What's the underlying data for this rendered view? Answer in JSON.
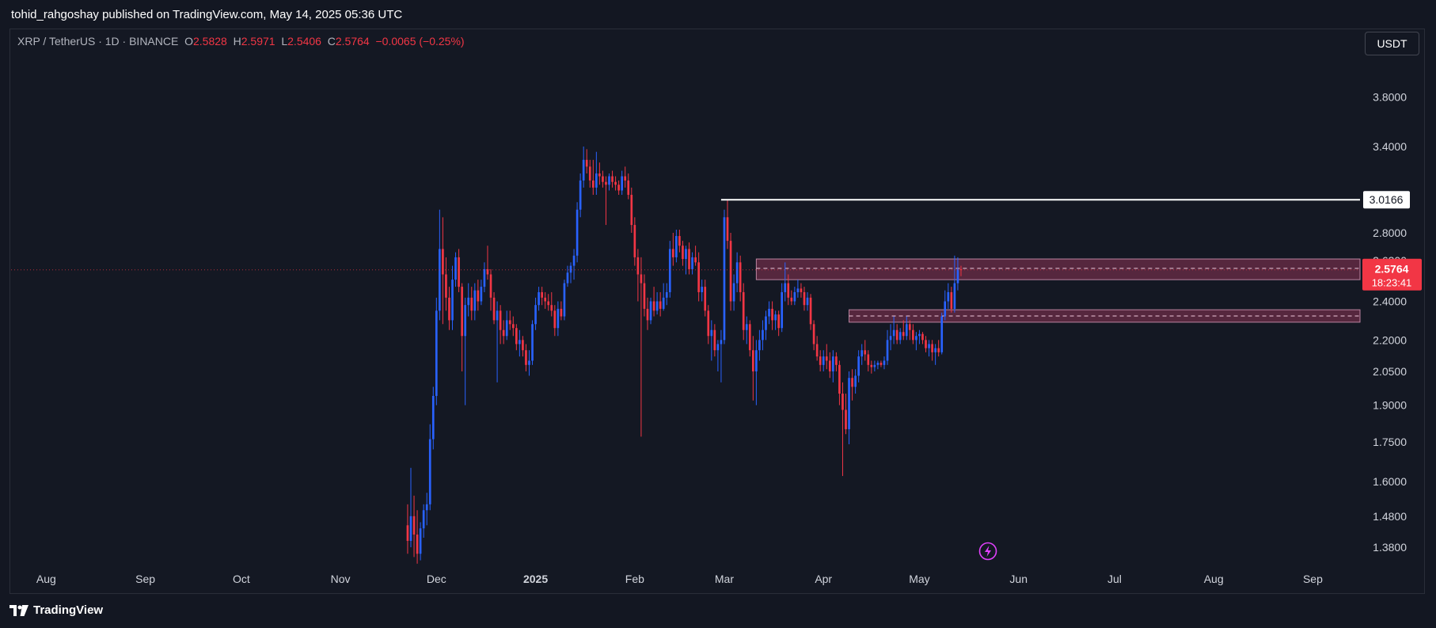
{
  "header": {
    "published": "tohid_rahgoshay published on TradingView.com, May 14, 2025 05:36 UTC"
  },
  "legend": {
    "symbol": "XRP / TetherUS · 1D · BINANCE",
    "o_label": "O",
    "o_value": "2.5828",
    "h_label": "H",
    "h_value": "2.5971",
    "l_label": "L",
    "l_value": "2.5406",
    "c_label": "C",
    "c_value": "2.5764",
    "change": "−0.0065 (−0.25%)"
  },
  "unit_button": "USDT",
  "footer": {
    "brand": "TradingView"
  },
  "colors": {
    "up": "#2962ff",
    "down": "#f23645",
    "zone": "#5a2840",
    "bg": "#141823"
  },
  "chart_data": {
    "type": "candlestick",
    "scale": "log",
    "y_ticks": [
      "3.8000",
      "3.4000",
      "2.8000",
      "2.4000",
      "2.2000",
      "2.0500",
      "1.9000",
      "1.7500",
      "1.6000",
      "1.4800",
      "1.3800"
    ],
    "x_ticks": [
      "Aug",
      "Sep",
      "Oct",
      "Nov",
      "Dec",
      "2025",
      "Feb",
      "Mar",
      "Apr",
      "May",
      "Jun",
      "Jul",
      "Aug",
      "Sep"
    ],
    "x_range": [
      "2024-07-23",
      "2025-09-15"
    ],
    "ylim": [
      1.32,
      4.1
    ],
    "resistance_line": {
      "label": "3.0166",
      "value": 3.0166,
      "from": "2025-02-28"
    },
    "last_price": {
      "value": "2.5764",
      "countdown": "18:23:41",
      "hidden_label": "2.6300"
    },
    "zones": [
      {
        "from": "2025-03-11",
        "low": 2.52,
        "high": 2.64,
        "mid": 2.585
      },
      {
        "from": "2025-04-09",
        "low": 2.29,
        "high": 2.355,
        "mid": 2.322
      }
    ],
    "candles": [
      [
        "2024-11-22",
        1.45,
        1.52,
        1.36,
        1.4
      ],
      [
        "2024-11-23",
        1.4,
        1.65,
        1.38,
        1.48
      ],
      [
        "2024-11-24",
        1.48,
        1.55,
        1.35,
        1.42
      ],
      [
        "2024-11-25",
        1.42,
        1.5,
        1.33,
        1.36
      ],
      [
        "2024-11-26",
        1.36,
        1.46,
        1.34,
        1.44
      ],
      [
        "2024-11-27",
        1.44,
        1.52,
        1.41,
        1.5
      ],
      [
        "2024-11-28",
        1.5,
        1.56,
        1.45,
        1.52
      ],
      [
        "2024-11-29",
        1.52,
        1.82,
        1.5,
        1.76
      ],
      [
        "2024-11-30",
        1.76,
        1.98,
        1.72,
        1.94
      ],
      [
        "2024-12-01",
        1.94,
        2.42,
        1.9,
        2.35
      ],
      [
        "2024-12-02",
        2.35,
        2.95,
        2.3,
        2.7
      ],
      [
        "2024-12-03",
        2.7,
        2.9,
        2.28,
        2.55
      ],
      [
        "2024-12-04",
        2.55,
        2.65,
        2.35,
        2.42
      ],
      [
        "2024-12-05",
        2.42,
        2.48,
        2.25,
        2.3
      ],
      [
        "2024-12-06",
        2.3,
        2.6,
        2.25,
        2.52
      ],
      [
        "2024-12-07",
        2.52,
        2.68,
        2.48,
        2.65
      ],
      [
        "2024-12-08",
        2.65,
        2.7,
        2.45,
        2.48
      ],
      [
        "2024-12-09",
        2.48,
        2.5,
        2.05,
        2.22
      ],
      [
        "2024-12-10",
        2.22,
        2.42,
        1.9,
        2.38
      ],
      [
        "2024-12-11",
        2.38,
        2.5,
        2.32,
        2.42
      ],
      [
        "2024-12-12",
        2.42,
        2.48,
        2.3,
        2.35
      ],
      [
        "2024-12-13",
        2.35,
        2.5,
        2.3,
        2.46
      ],
      [
        "2024-12-14",
        2.46,
        2.52,
        2.35,
        2.4
      ],
      [
        "2024-12-15",
        2.4,
        2.52,
        2.38,
        2.48
      ],
      [
        "2024-12-16",
        2.48,
        2.62,
        2.45,
        2.58
      ],
      [
        "2024-12-17",
        2.58,
        2.72,
        2.52,
        2.55
      ],
      [
        "2024-12-18",
        2.55,
        2.58,
        2.35,
        2.42
      ],
      [
        "2024-12-19",
        2.42,
        2.45,
        2.28,
        2.3
      ],
      [
        "2024-12-20",
        2.3,
        2.4,
        2.0,
        2.35
      ],
      [
        "2024-12-21",
        2.35,
        2.38,
        2.18,
        2.25
      ],
      [
        "2024-12-22",
        2.25,
        2.3,
        2.18,
        2.22
      ],
      [
        "2024-12-23",
        2.22,
        2.35,
        2.2,
        2.3
      ],
      [
        "2024-12-24",
        2.3,
        2.35,
        2.25,
        2.28
      ],
      [
        "2024-12-25",
        2.28,
        2.32,
        2.22,
        2.26
      ],
      [
        "2024-12-26",
        2.26,
        2.28,
        2.15,
        2.18
      ],
      [
        "2024-12-27",
        2.18,
        2.25,
        2.12,
        2.2
      ],
      [
        "2024-12-28",
        2.2,
        2.22,
        2.12,
        2.15
      ],
      [
        "2024-12-29",
        2.15,
        2.18,
        2.05,
        2.08
      ],
      [
        "2024-12-30",
        2.08,
        2.15,
        2.03,
        2.1
      ],
      [
        "2024-12-31",
        2.1,
        2.3,
        2.08,
        2.28
      ],
      [
        "2025-01-01",
        2.28,
        2.42,
        2.25,
        2.38
      ],
      [
        "2025-01-02",
        2.38,
        2.48,
        2.35,
        2.45
      ],
      [
        "2025-01-03",
        2.45,
        2.48,
        2.38,
        2.42
      ],
      [
        "2025-01-04",
        2.42,
        2.45,
        2.36,
        2.4
      ],
      [
        "2025-01-05",
        2.4,
        2.44,
        2.35,
        2.38
      ],
      [
        "2025-01-06",
        2.38,
        2.45,
        2.32,
        2.35
      ],
      [
        "2025-01-07",
        2.35,
        2.38,
        2.22,
        2.26
      ],
      [
        "2025-01-08",
        2.26,
        2.4,
        2.22,
        2.36
      ],
      [
        "2025-01-09",
        2.36,
        2.4,
        2.3,
        2.32
      ],
      [
        "2025-01-10",
        2.32,
        2.52,
        2.3,
        2.5
      ],
      [
        "2025-01-11",
        2.5,
        2.6,
        2.48,
        2.56
      ],
      [
        "2025-01-12",
        2.56,
        2.62,
        2.5,
        2.6
      ],
      [
        "2025-01-13",
        2.6,
        2.7,
        2.52,
        2.66
      ],
      [
        "2025-01-14",
        2.66,
        3.0,
        2.62,
        2.95
      ],
      [
        "2025-01-15",
        2.95,
        3.2,
        2.9,
        3.15
      ],
      [
        "2025-01-16",
        3.15,
        3.4,
        3.1,
        3.3
      ],
      [
        "2025-01-17",
        3.3,
        3.38,
        3.2,
        3.25
      ],
      [
        "2025-01-18",
        3.25,
        3.3,
        3.1,
        3.15
      ],
      [
        "2025-01-19",
        3.15,
        3.3,
        3.05,
        3.1
      ],
      [
        "2025-01-20",
        3.1,
        3.36,
        3.05,
        3.2
      ],
      [
        "2025-01-21",
        3.2,
        3.28,
        3.12,
        3.18
      ],
      [
        "2025-01-22",
        3.18,
        3.22,
        3.1,
        3.14
      ],
      [
        "2025-01-23",
        3.14,
        3.18,
        2.85,
        3.12
      ],
      [
        "2025-01-24",
        3.12,
        3.2,
        3.08,
        3.18
      ],
      [
        "2025-01-25",
        3.18,
        3.22,
        3.1,
        3.14
      ],
      [
        "2025-01-26",
        3.14,
        3.18,
        3.08,
        3.12
      ],
      [
        "2025-01-27",
        3.12,
        3.15,
        3.05,
        3.08
      ],
      [
        "2025-01-28",
        3.08,
        3.22,
        3.05,
        3.18
      ],
      [
        "2025-01-29",
        3.18,
        3.25,
        3.1,
        3.15
      ],
      [
        "2025-01-30",
        3.15,
        3.2,
        3.02,
        3.05
      ],
      [
        "2025-01-31",
        3.05,
        3.1,
        2.8,
        2.85
      ],
      [
        "2025-02-01",
        2.85,
        2.9,
        2.6,
        2.65
      ],
      [
        "2025-02-02",
        2.65,
        2.7,
        2.4,
        2.55
      ],
      [
        "2025-02-03",
        2.55,
        2.65,
        1.77,
        2.5
      ],
      [
        "2025-02-04",
        2.5,
        2.55,
        2.32,
        2.36
      ],
      [
        "2025-02-05",
        2.36,
        2.42,
        2.25,
        2.3
      ],
      [
        "2025-02-06",
        2.3,
        2.42,
        2.28,
        2.4
      ],
      [
        "2025-02-07",
        2.4,
        2.48,
        2.32,
        2.35
      ],
      [
        "2025-02-08",
        2.35,
        2.45,
        2.33,
        2.4
      ],
      [
        "2025-02-09",
        2.4,
        2.45,
        2.32,
        2.36
      ],
      [
        "2025-02-10",
        2.36,
        2.5,
        2.35,
        2.42
      ],
      [
        "2025-02-11",
        2.42,
        2.5,
        2.38,
        2.45
      ],
      [
        "2025-02-12",
        2.45,
        2.75,
        2.42,
        2.7
      ],
      [
        "2025-02-13",
        2.7,
        2.8,
        2.6,
        2.65
      ],
      [
        "2025-02-14",
        2.65,
        2.82,
        2.62,
        2.78
      ],
      [
        "2025-02-15",
        2.78,
        2.82,
        2.68,
        2.72
      ],
      [
        "2025-02-16",
        2.72,
        2.75,
        2.6,
        2.64
      ],
      [
        "2025-02-17",
        2.64,
        2.72,
        2.55,
        2.7
      ],
      [
        "2025-02-18",
        2.7,
        2.74,
        2.55,
        2.58
      ],
      [
        "2025-02-19",
        2.58,
        2.68,
        2.55,
        2.65
      ],
      [
        "2025-02-20",
        2.65,
        2.72,
        2.6,
        2.62
      ],
      [
        "2025-02-21",
        2.62,
        2.68,
        2.4,
        2.45
      ],
      [
        "2025-02-22",
        2.45,
        2.52,
        2.4,
        2.48
      ],
      [
        "2025-02-23",
        2.48,
        2.52,
        2.32,
        2.35
      ],
      [
        "2025-02-24",
        2.35,
        2.38,
        2.18,
        2.22
      ],
      [
        "2025-02-25",
        2.22,
        2.3,
        2.1,
        2.25
      ],
      [
        "2025-02-26",
        2.25,
        2.28,
        2.12,
        2.15
      ],
      [
        "2025-02-27",
        2.15,
        2.2,
        2.05,
        2.18
      ],
      [
        "2025-02-28",
        2.18,
        2.25,
        2.0,
        2.2
      ],
      [
        "2025-03-01",
        2.2,
        2.95,
        2.18,
        2.9
      ],
      [
        "2025-03-02",
        2.9,
        3.02,
        2.7,
        2.75
      ],
      [
        "2025-03-03",
        2.75,
        2.8,
        2.35,
        2.4
      ],
      [
        "2025-03-04",
        2.4,
        2.55,
        2.35,
        2.5
      ],
      [
        "2025-03-05",
        2.5,
        2.68,
        2.45,
        2.62
      ],
      [
        "2025-03-06",
        2.62,
        2.66,
        2.4,
        2.45
      ],
      [
        "2025-03-07",
        2.45,
        2.5,
        2.2,
        2.25
      ],
      [
        "2025-03-08",
        2.25,
        2.32,
        2.18,
        2.28
      ],
      [
        "2025-03-09",
        2.28,
        2.3,
        2.12,
        2.15
      ],
      [
        "2025-03-10",
        2.15,
        2.22,
        1.92,
        2.05
      ],
      [
        "2025-03-11",
        2.05,
        2.2,
        1.9,
        2.15
      ],
      [
        "2025-03-12",
        2.15,
        2.25,
        2.1,
        2.2
      ],
      [
        "2025-03-13",
        2.2,
        2.3,
        2.15,
        2.25
      ],
      [
        "2025-03-14",
        2.25,
        2.35,
        2.2,
        2.32
      ],
      [
        "2025-03-15",
        2.32,
        2.4,
        2.28,
        2.36
      ],
      [
        "2025-03-16",
        2.36,
        2.4,
        2.25,
        2.3
      ],
      [
        "2025-03-17",
        2.3,
        2.35,
        2.25,
        2.33
      ],
      [
        "2025-03-18",
        2.33,
        2.35,
        2.22,
        2.26
      ],
      [
        "2025-03-19",
        2.26,
        2.5,
        2.24,
        2.45
      ],
      [
        "2025-03-20",
        2.45,
        2.62,
        2.4,
        2.5
      ],
      [
        "2025-03-21",
        2.5,
        2.55,
        2.38,
        2.42
      ],
      [
        "2025-03-22",
        2.42,
        2.46,
        2.38,
        2.4
      ],
      [
        "2025-03-23",
        2.4,
        2.48,
        2.38,
        2.45
      ],
      [
        "2025-03-24",
        2.45,
        2.52,
        2.42,
        2.47
      ],
      [
        "2025-03-25",
        2.47,
        2.5,
        2.42,
        2.45
      ],
      [
        "2025-03-26",
        2.45,
        2.48,
        2.35,
        2.38
      ],
      [
        "2025-03-27",
        2.38,
        2.45,
        2.35,
        2.42
      ],
      [
        "2025-03-28",
        2.42,
        2.44,
        2.25,
        2.28
      ],
      [
        "2025-03-29",
        2.28,
        2.3,
        2.15,
        2.18
      ],
      [
        "2025-03-30",
        2.18,
        2.22,
        2.1,
        2.12
      ],
      [
        "2025-03-31",
        2.12,
        2.15,
        2.05,
        2.08
      ],
      [
        "2025-04-01",
        2.08,
        2.15,
        2.05,
        2.12
      ],
      [
        "2025-04-02",
        2.12,
        2.18,
        2.06,
        2.1
      ],
      [
        "2025-04-03",
        2.1,
        2.14,
        2.02,
        2.05
      ],
      [
        "2025-04-04",
        2.05,
        2.15,
        2.0,
        2.12
      ],
      [
        "2025-04-05",
        2.12,
        2.14,
        2.05,
        2.08
      ],
      [
        "2025-04-06",
        2.08,
        2.1,
        1.9,
        1.95
      ],
      [
        "2025-04-07",
        1.95,
        2.0,
        1.62,
        1.88
      ],
      [
        "2025-04-08",
        1.88,
        1.95,
        1.78,
        1.8
      ],
      [
        "2025-04-09",
        1.8,
        2.05,
        1.74,
        2.02
      ],
      [
        "2025-04-10",
        2.02,
        2.06,
        1.92,
        1.98
      ],
      [
        "2025-04-11",
        1.98,
        2.06,
        1.95,
        2.03
      ],
      [
        "2025-04-12",
        2.03,
        2.15,
        2.0,
        2.12
      ],
      [
        "2025-04-13",
        2.12,
        2.18,
        2.08,
        2.15
      ],
      [
        "2025-04-14",
        2.15,
        2.2,
        2.1,
        2.13
      ],
      [
        "2025-04-15",
        2.13,
        2.15,
        2.05,
        2.08
      ],
      [
        "2025-04-16",
        2.08,
        2.1,
        2.04,
        2.07
      ],
      [
        "2025-04-17",
        2.07,
        2.1,
        2.05,
        2.08
      ],
      [
        "2025-04-18",
        2.08,
        2.1,
        2.06,
        2.09
      ],
      [
        "2025-04-19",
        2.09,
        2.1,
        2.07,
        2.08
      ],
      [
        "2025-04-20",
        2.08,
        2.12,
        2.06,
        2.1
      ],
      [
        "2025-04-21",
        2.1,
        2.25,
        2.08,
        2.2
      ],
      [
        "2025-04-22",
        2.2,
        2.28,
        2.15,
        2.22
      ],
      [
        "2025-04-23",
        2.22,
        2.32,
        2.18,
        2.25
      ],
      [
        "2025-04-24",
        2.25,
        2.28,
        2.18,
        2.2
      ],
      [
        "2025-04-25",
        2.2,
        2.26,
        2.18,
        2.24
      ],
      [
        "2025-04-26",
        2.24,
        2.3,
        2.2,
        2.22
      ],
      [
        "2025-04-27",
        2.22,
        2.32,
        2.2,
        2.28
      ],
      [
        "2025-04-28",
        2.28,
        2.3,
        2.2,
        2.25
      ],
      [
        "2025-04-29",
        2.25,
        2.28,
        2.18,
        2.2
      ],
      [
        "2025-04-30",
        2.2,
        2.24,
        2.15,
        2.22
      ],
      [
        "2025-05-01",
        2.22,
        2.25,
        2.18,
        2.23
      ],
      [
        "2025-05-02",
        2.23,
        2.24,
        2.18,
        2.2
      ],
      [
        "2025-05-03",
        2.2,
        2.22,
        2.14,
        2.16
      ],
      [
        "2025-05-04",
        2.16,
        2.2,
        2.12,
        2.18
      ],
      [
        "2025-05-05",
        2.18,
        2.2,
        2.1,
        2.14
      ],
      [
        "2025-05-06",
        2.14,
        2.18,
        2.08,
        2.16
      ],
      [
        "2025-05-07",
        2.16,
        2.2,
        2.12,
        2.14
      ],
      [
        "2025-05-08",
        2.14,
        2.34,
        2.13,
        2.32
      ],
      [
        "2025-05-09",
        2.32,
        2.46,
        2.3,
        2.4
      ],
      [
        "2025-05-10",
        2.4,
        2.5,
        2.36,
        2.45
      ],
      [
        "2025-05-11",
        2.45,
        2.48,
        2.34,
        2.36
      ],
      [
        "2025-05-12",
        2.36,
        2.66,
        2.34,
        2.5
      ],
      [
        "2025-05-13",
        2.5,
        2.65,
        2.46,
        2.58
      ],
      [
        "2025-05-14",
        2.58,
        2.6,
        2.54,
        2.5764
      ]
    ]
  }
}
